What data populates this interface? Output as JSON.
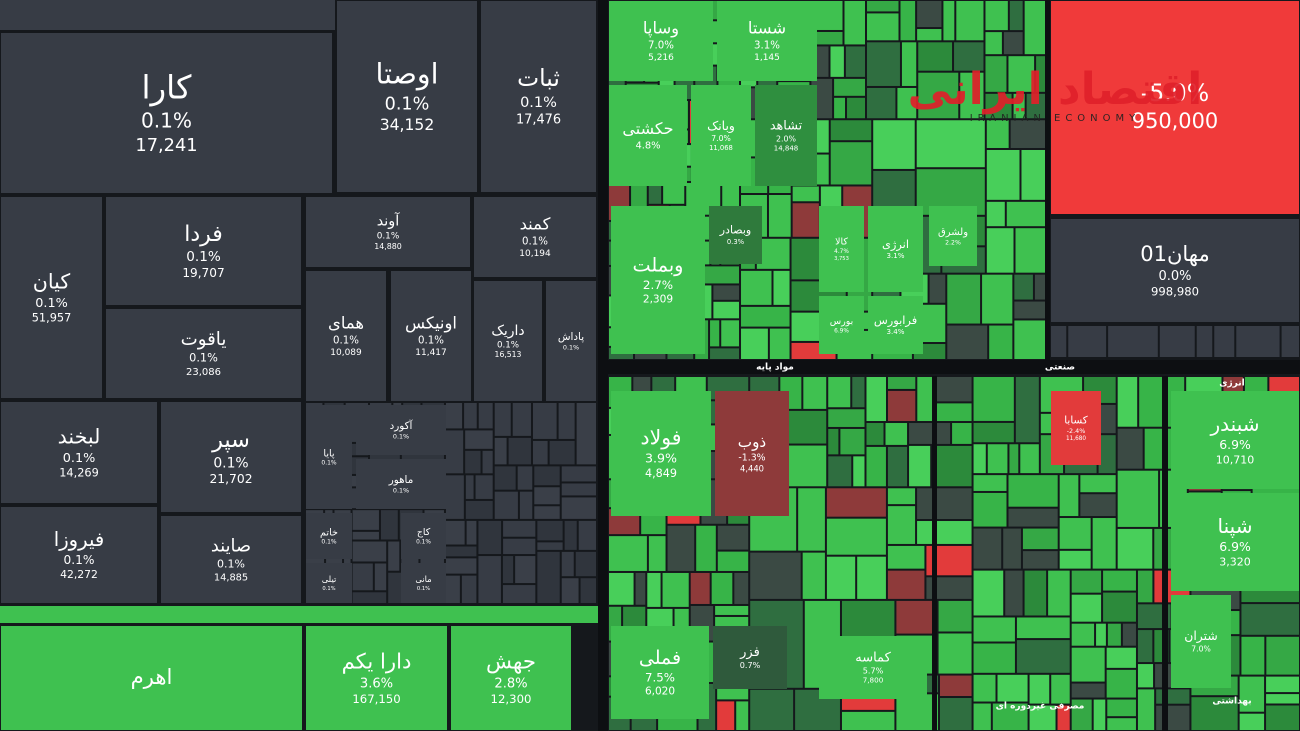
{
  "brand": {
    "title": "اقتصاد ایرانی",
    "subtitle": "IRANIAN ECONOMY"
  },
  "sections": [
    "مواد پایه",
    "صنعتی",
    "انرژی",
    "بهداشتی",
    "مصرفی غیردوره ای"
  ],
  "tiles": [
    {
      "name": "کارا",
      "change": "0.1%",
      "volume": "17,241",
      "color": "#373c45"
    },
    {
      "name": "اوصتا",
      "change": "0.1%",
      "volume": "34,152",
      "color": "#373c45"
    },
    {
      "name": "ثبات",
      "change": "0.1%",
      "volume": "17,476",
      "color": "#373c45"
    },
    {
      "name": "کیان",
      "change": "0.1%",
      "volume": "51,957",
      "color": "#373c45"
    },
    {
      "name": "فردا",
      "change": "0.1%",
      "volume": "19,707",
      "color": "#373c45"
    },
    {
      "name": "یاقوت",
      "change": "0.1%",
      "volume": "23,086",
      "color": "#373c45"
    },
    {
      "name": "آوند",
      "change": "0.1%",
      "volume": "14,880",
      "color": "#373c45"
    },
    {
      "name": "کمند",
      "change": "0.1%",
      "volume": "10,194",
      "color": "#373c45"
    },
    {
      "name": "همای",
      "change": "0.1%",
      "volume": "10,089",
      "color": "#373c45"
    },
    {
      "name": "اونیکس",
      "change": "0.1%",
      "volume": "11,417",
      "color": "#373c45"
    },
    {
      "name": "داریک",
      "change": "0.1%",
      "volume": "16,513",
      "color": "#373c45"
    },
    {
      "name": "پاداش",
      "change": "0.1%",
      "color": "#373c45"
    },
    {
      "name": "لبخند",
      "change": "0.1%",
      "volume": "14,269",
      "color": "#373c45"
    },
    {
      "name": "سپر",
      "change": "0.1%",
      "volume": "21,702",
      "color": "#373c45"
    },
    {
      "name": "فیروزا",
      "change": "0.1%",
      "volume": "42,272",
      "color": "#373c45"
    },
    {
      "name": "صایند",
      "change": "0.1%",
      "volume": "14,885",
      "color": "#373c45"
    },
    {
      "name": "آکورد",
      "change": "0.1%",
      "color": "#373c45"
    },
    {
      "name": "پایا",
      "change": "0.1%",
      "color": "#373c45"
    },
    {
      "name": "ماهور",
      "change": "0.1%",
      "color": "#373c45"
    },
    {
      "name": "خاتم",
      "change": "0.1%",
      "color": "#373c45"
    },
    {
      "name": "کاج",
      "change": "0.1%",
      "color": "#373c45"
    },
    {
      "name": "تیلی",
      "change": "0.1%",
      "color": "#373c45"
    },
    {
      "name": "مانی",
      "change": "0.1%",
      "color": "#373c45"
    },
    {
      "name": "اهرم",
      "color": "#3fc150"
    },
    {
      "name": "دارا یکم",
      "change": "3.6%",
      "volume": "167,150",
      "color": "#3fc150"
    },
    {
      "name": "جهش",
      "change": "2.8%",
      "volume": "12,300",
      "color": "#3fc150"
    },
    {
      "name": "وساپا",
      "change": "7.0%",
      "volume": "5,216",
      "color": "#3fc150"
    },
    {
      "name": "شستا",
      "change": "3.1%",
      "volume": "1,145",
      "color": "#3fc150"
    },
    {
      "name": "حکشتی",
      "change": "4.8%",
      "color": "#3fc150"
    },
    {
      "name": "وبانک",
      "change": "7.0%",
      "volume": "11,068",
      "color": "#3fc150"
    },
    {
      "name": "تشاهد",
      "change": "2.0%",
      "volume": "14,848",
      "color": "#2f8f3f"
    },
    {
      "change": "-5.0%",
      "volume": "950,000",
      "color": "#f03a3a"
    },
    {
      "name": "مهان01",
      "change": "0.0%",
      "volume": "998,980",
      "color": "#373c45"
    },
    {
      "name": "وبملت",
      "change": "2.7%",
      "volume": "2,309",
      "color": "#3fc150"
    },
    {
      "name": "وبصادر",
      "change": "0.3%",
      "color": "#2f7a3c"
    },
    {
      "name": "کالا",
      "change": "4.7%",
      "volume": "3,753",
      "color": "#3fc150"
    },
    {
      "name": "انرژی",
      "change": "3.1%",
      "color": "#3fc150"
    },
    {
      "name": "بورس",
      "change": "6.9%",
      "color": "#3fc150"
    },
    {
      "name": "فرابورس",
      "change": "3.4%",
      "color": "#3fc150"
    },
    {
      "name": "ولشرق",
      "change": "2.2%",
      "color": "#3fc150"
    },
    {
      "name": "فولاد",
      "change": "3.9%",
      "volume": "4,849",
      "color": "#3fc150"
    },
    {
      "name": "ذوب",
      "change": "-1.3%",
      "volume": "4,440",
      "color": "#8e3a3a"
    },
    {
      "name": "کسابا",
      "change": "-2.4%",
      "volume": "11,680",
      "color": "#e23b3b"
    },
    {
      "name": "شبندر",
      "change": "6.9%",
      "volume": "10,710",
      "color": "#3fc150"
    },
    {
      "name": "شپنا",
      "change": "6.9%",
      "volume": "3,320",
      "color": "#3fc150"
    },
    {
      "name": "شتران",
      "change": "7.0%",
      "color": "#3fc150"
    },
    {
      "name": "فملی",
      "change": "7.5%",
      "volume": "6,020",
      "color": "#3fc150"
    },
    {
      "name": "فزر",
      "change": "0.7%",
      "color": "#2f5a3c"
    },
    {
      "name": "کماسه",
      "change": "5.7%",
      "volume": "7,800",
      "color": "#3fc150"
    }
  ]
}
